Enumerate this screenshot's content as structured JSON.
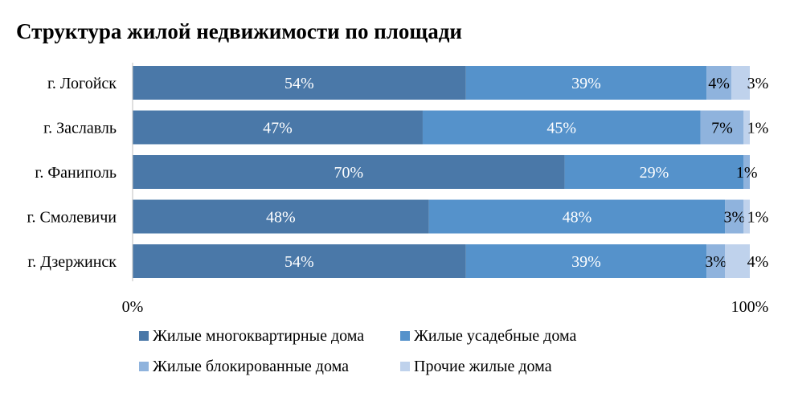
{
  "chart_data": {
    "type": "bar",
    "orientation": "horizontal",
    "stacking": "percent",
    "title": "Структура жилой недвижимости по площади",
    "categories": [
      "г. Логойск",
      "г. Заславль",
      "г. Фаниполь",
      "г. Смолевичи",
      "г. Дзержинск"
    ],
    "series": [
      {
        "name": "Жилые многоквартирные дома",
        "values": [
          54,
          47,
          70,
          48,
          54
        ],
        "labels": [
          "54%",
          "47%",
          "70%",
          "48%",
          "54%"
        ],
        "color": "#4a78a8",
        "label_color": "#ffffff"
      },
      {
        "name": "Жилые усадебные дома",
        "values": [
          39,
          45,
          29,
          48,
          39
        ],
        "labels": [
          "39%",
          "45%",
          "29%",
          "48%",
          "39%"
        ],
        "color": "#5592cb",
        "label_color": "#ffffff"
      },
      {
        "name": "Жилые блокированные дома",
        "values": [
          4,
          7,
          1,
          3,
          3
        ],
        "labels": [
          "4%",
          "7%",
          "1%",
          "3%",
          "3%"
        ],
        "color": "#8fb3dd",
        "label_color": "#000000"
      },
      {
        "name": "Прочие жилые дома",
        "values": [
          3,
          1,
          0,
          1,
          4
        ],
        "labels": [
          "3%",
          "1%",
          "",
          "1%",
          "4%"
        ],
        "color": "#bfd2ec",
        "label_color": "#000000"
      }
    ],
    "x_ticks": [
      "0%",
      "100%"
    ],
    "xlim": [
      0,
      100
    ],
    "grid": false,
    "legend_position": "bottom"
  }
}
